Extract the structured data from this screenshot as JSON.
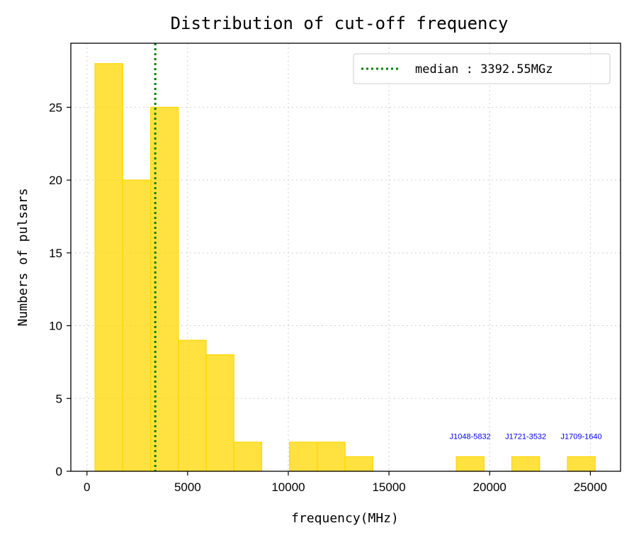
{
  "chart_data": {
    "type": "bar",
    "title": "Distribution of cut-off frequency",
    "xlabel": "frequency(MHz)",
    "ylabel": "Numbers of pulsars",
    "xlim": [
      -800,
      26500
    ],
    "ylim": [
      0,
      29.4
    ],
    "xticks": [
      0,
      5000,
      10000,
      15000,
      20000,
      25000
    ],
    "yticks": [
      0,
      5,
      10,
      15,
      20,
      25
    ],
    "grid": true,
    "bar_color": "#FFD700",
    "bins": [
      {
        "x0": 400,
        "x1": 1780,
        "count": 28
      },
      {
        "x0": 1780,
        "x1": 3160,
        "count": 20
      },
      {
        "x0": 3160,
        "x1": 4540,
        "count": 25
      },
      {
        "x0": 4540,
        "x1": 5920,
        "count": 9
      },
      {
        "x0": 5920,
        "x1": 7300,
        "count": 8
      },
      {
        "x0": 7300,
        "x1": 8680,
        "count": 2
      },
      {
        "x0": 8680,
        "x1": 10060,
        "count": 0
      },
      {
        "x0": 10060,
        "x1": 11440,
        "count": 2
      },
      {
        "x0": 11440,
        "x1": 12820,
        "count": 2
      },
      {
        "x0": 12820,
        "x1": 14200,
        "count": 1
      },
      {
        "x0": 14200,
        "x1": 15580,
        "count": 0
      },
      {
        "x0": 15580,
        "x1": 16960,
        "count": 0
      },
      {
        "x0": 16960,
        "x1": 18340,
        "count": 0
      },
      {
        "x0": 18340,
        "x1": 19720,
        "count": 1
      },
      {
        "x0": 19720,
        "x1": 21100,
        "count": 0
      },
      {
        "x0": 21100,
        "x1": 22480,
        "count": 1
      },
      {
        "x0": 22480,
        "x1": 23860,
        "count": 0
      },
      {
        "x0": 23860,
        "x1": 25240,
        "count": 1
      }
    ],
    "median": {
      "value": 3392.55,
      "color": "#008000",
      "legend_label": "median : 3392.55MGz"
    },
    "legend_position": "top-right",
    "annotations": [
      {
        "text": "J1048-5832",
        "x": 19030,
        "y": 1.0,
        "color": "#0000FF"
      },
      {
        "text": "J1721-3532",
        "x": 21790,
        "y": 1.0,
        "color": "#0000FF"
      },
      {
        "text": "J1709-1640",
        "x": 24550,
        "y": 1.0,
        "color": "#0000FF"
      }
    ]
  }
}
